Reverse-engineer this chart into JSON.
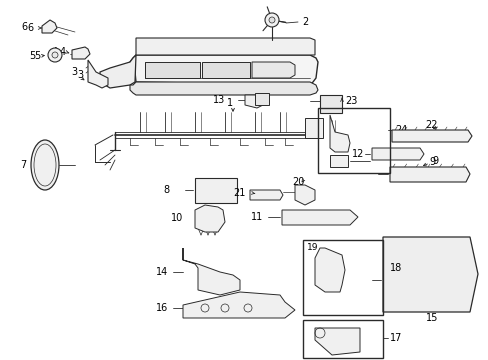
{
  "background_color": "#ffffff",
  "line_color": "#2a2a2a",
  "text_color": "#000000",
  "fig_width": 4.89,
  "fig_height": 3.6,
  "dpi": 100,
  "label_fs": 7.0
}
